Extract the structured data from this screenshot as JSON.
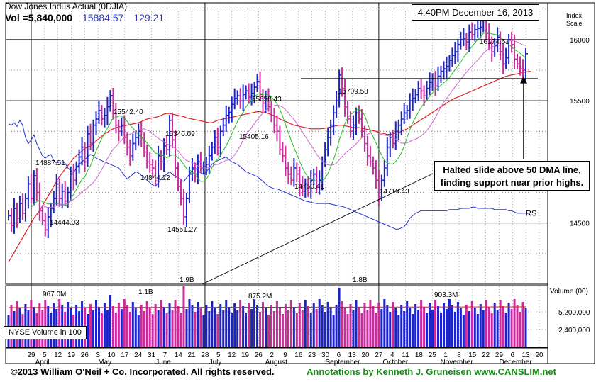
{
  "header": {
    "title": "Dow Jones Indus Actual  (0DJIA)",
    "vol_label": "Vol =5,840,000",
    "last_price": "15884.57",
    "change": "129.21",
    "datetime": "4:40PM December 16, 2013"
  },
  "annotation": {
    "line1": "Halted slide above 50 DMA line,",
    "line2": "finding support near prior highs."
  },
  "footer": {
    "copyright": "©2013 William O'Neil + Co. Incorporated. All rights reserved.",
    "credit": "Annotations by Kenneth J. Gruneisen www.CANSLIM.net"
  },
  "colors": {
    "up_bar": "#1a22c8",
    "down_bar": "#cc2a9c",
    "ma50": "#dd2222",
    "ma10": "#22bb22",
    "ma21": "#cc66cc",
    "rs_line": "#2233cc",
    "annotation_green": "#1a8a1a"
  },
  "chart_data": {
    "type": "line",
    "title": "Dow Jones Indus Actual  (0DJIA)",
    "index_scale_label": "Index Scale",
    "y_ticks": [
      "16000",
      "15500",
      "14500"
    ],
    "ylim": [
      14000,
      16300
    ],
    "price_labels": [
      "14887.51",
      "14444.03",
      "15542.40",
      "15340.09",
      "14844.22",
      "14551.27",
      "15405.16",
      "15658.43",
      "14760.41",
      "15709.58",
      "14719.43",
      "16174.51"
    ],
    "x_ticks": [
      "29",
      "5",
      "12",
      "19",
      "26",
      "3",
      "10",
      "17",
      "24",
      "31",
      "7",
      "14",
      "21",
      "28",
      "5",
      "12",
      "19",
      "26",
      "2",
      "9",
      "16",
      "23",
      "30",
      "6",
      "13",
      "20",
      "27",
      "4",
      "11",
      "18",
      "25",
      "1",
      "8",
      "15",
      "22",
      "29",
      "6",
      "13",
      "20"
    ],
    "months": [
      "April",
      "May",
      "June",
      "July",
      "August",
      "September",
      "October",
      "November",
      "December"
    ],
    "rs_label": "RS",
    "volume": {
      "axis_title": "Volume (00)",
      "ticks": [
        "5,200,000",
        "2,400,000"
      ],
      "labels": [
        "967.0M",
        "1.1B",
        "1.9B",
        "875.2M",
        "1.8B",
        "903.3M"
      ],
      "legend": "NYSE Volume in 100"
    },
    "series": [
      {
        "name": "0DJIA",
        "values": [
          14560,
          14480,
          14620,
          14540,
          14660,
          14580,
          14700,
          14820,
          14700,
          14887,
          14750,
          14600,
          14520,
          14444,
          14550,
          14620,
          14700,
          14820,
          14700,
          14760,
          14680,
          14750,
          14900,
          14850,
          14960,
          15040,
          15120,
          15000,
          15230,
          15150,
          15300,
          15350,
          15420,
          15350,
          15380,
          15450,
          15542,
          15400,
          15300,
          15250,
          15300,
          15200,
          15120,
          15050,
          15150,
          15200,
          15250,
          15200,
          15080,
          15000,
          14980,
          14950,
          14844,
          15050,
          15000,
          15130,
          15100,
          15340,
          15180,
          14950,
          14800,
          14700,
          14551,
          14700,
          14900,
          14950,
          14900,
          15000,
          14950,
          14960,
          14980,
          15050,
          15120,
          15200,
          15120,
          15250,
          15300,
          15380,
          15405,
          15470,
          15520,
          15540,
          15500,
          15550,
          15580,
          15530,
          15560,
          15610,
          15658,
          15550,
          15480,
          15520,
          15450,
          15380,
          15300,
          15250,
          15100,
          15050,
          14950,
          14900,
          14850,
          14950,
          14900,
          14800,
          14760,
          14820,
          14780,
          14850,
          14900,
          14800,
          14850,
          15000,
          15100,
          15200,
          15300,
          15400,
          15500,
          15709,
          15600,
          15450,
          15350,
          15250,
          15300,
          15400,
          15350,
          15250,
          15150,
          15050,
          15000,
          14950,
          14850,
          14719,
          14850,
          14950,
          15120,
          15200,
          15150,
          15250,
          15300,
          15350,
          15400,
          15420,
          15500,
          15520,
          15550,
          15600,
          15580,
          15540,
          15600,
          15650,
          15680,
          15620,
          15700,
          15740,
          15760,
          15780,
          15830,
          15870,
          15900,
          15960,
          16000,
          16010,
          15980,
          16060,
          16040,
          16080,
          16090,
          16100,
          16174,
          16050,
          15980,
          15900,
          15950,
          16020,
          15900,
          15800,
          15850,
          16000,
          15960,
          15840,
          15800,
          15760,
          15750,
          15884
        ]
      },
      {
        "name": "50 DMA",
        "values": [
          14180,
          14220,
          14260,
          14300,
          14340,
          14380,
          14420,
          14460,
          14500,
          14540,
          14570,
          14600,
          14640,
          14680,
          14720,
          14760,
          14800,
          14840,
          14880,
          14910,
          14940,
          14970,
          15000,
          15030,
          15050,
          15070,
          15090,
          15110,
          15120,
          15130,
          15150,
          15170,
          15190,
          15210,
          15230,
          15240,
          15260,
          15270,
          15280,
          15285,
          15290,
          15295,
          15300,
          15305,
          15310,
          15315,
          15320,
          15330,
          15340,
          15350,
          15355,
          15360,
          15365,
          15370,
          15380,
          15390,
          15395,
          15395,
          15390,
          15385,
          15380,
          15375,
          15370,
          15360,
          15355,
          15350,
          15345,
          15340,
          15335,
          15330,
          15325,
          15320,
          15320,
          15330,
          15340,
          15345,
          15350,
          15355,
          15360,
          15365,
          15370,
          15375,
          15380,
          15385,
          15390,
          15395,
          15400,
          15405,
          15410,
          15410,
          15405,
          15400,
          15395,
          15385,
          15375,
          15365,
          15350,
          15340,
          15330,
          15320,
          15310,
          15300,
          15295,
          15290,
          15285,
          15280,
          15275,
          15270,
          15270,
          15270,
          15270,
          15272,
          15275,
          15280,
          15285,
          15290,
          15295,
          15300,
          15300,
          15295,
          15290,
          15285,
          15280,
          15280,
          15280,
          15275,
          15270,
          15265,
          15260,
          15255,
          15250,
          15240,
          15235,
          15230,
          15225,
          15225,
          15230,
          15235,
          15240,
          15250,
          15260,
          15270,
          15285,
          15300,
          15315,
          15330,
          15345,
          15360,
          15375,
          15390,
          15405,
          15420,
          15435,
          15450,
          15465,
          15480,
          15495,
          15510,
          15520,
          15530,
          15540,
          15550,
          15560,
          15570,
          15580,
          15590,
          15600,
          15610,
          15620,
          15630,
          15640,
          15650,
          15660,
          15670,
          15680,
          15690,
          15700,
          15705,
          15710,
          15715,
          15720,
          15725,
          15730,
          15735,
          15738,
          15740
        ]
      },
      {
        "name": "RS",
        "values": [
          15310,
          15300,
          15320,
          15290,
          15340,
          15300,
          15200,
          15150,
          15180,
          15220,
          15150,
          15100,
          15050,
          15030,
          15050,
          15060,
          15010,
          14990,
          15000,
          15000,
          14990,
          14950,
          14930,
          14910,
          14950,
          14980,
          15000,
          15020,
          15040,
          15060,
          15050,
          15030,
          15020,
          15010,
          15000,
          14990,
          14980,
          14970,
          14960,
          14950,
          14920,
          14890,
          14860,
          14880,
          14900,
          14920,
          14910,
          14890,
          14870,
          14850,
          14830,
          14810,
          14800,
          14830,
          14860,
          14880,
          14900,
          14920,
          14900,
          14880,
          14870,
          14850,
          14840,
          14870,
          14900,
          14930,
          14950,
          14930,
          14910,
          14900,
          14920,
          14950,
          14980,
          15000,
          15010,
          15020,
          15030,
          15040,
          15020,
          15000,
          14990,
          14980,
          14960,
          14940,
          14920,
          14910,
          14900,
          14890,
          14880,
          14860,
          14840,
          14820,
          14800,
          14790,
          14780,
          14780,
          14770,
          14760,
          14750,
          14740,
          14730,
          14720,
          14710,
          14700,
          14690,
          14680,
          14675,
          14670,
          14665,
          14660,
          14660,
          14660,
          14660,
          14660,
          14655,
          14650,
          14645,
          14640,
          14635,
          14630,
          14620,
          14610,
          14600,
          14590,
          14580,
          14570,
          14560,
          14550,
          14540,
          14530,
          14520,
          14510,
          14500,
          14490,
          14480,
          14470,
          14460,
          14450,
          14450,
          14460,
          14470,
          14500,
          14540,
          14560,
          14580,
          14590,
          14600,
          14600,
          14600,
          14600,
          14600,
          14600,
          14600,
          14600,
          14600,
          14600,
          14610,
          14610,
          14610,
          14610,
          14620,
          14620,
          14620,
          14620,
          14630,
          14630,
          14620,
          14620,
          14620,
          14620,
          14620,
          14620,
          14610,
          14610,
          14610,
          14610,
          14610,
          14600,
          14600,
          14590,
          14580,
          14580,
          14580,
          14580,
          14580,
          14590
        ]
      }
    ]
  }
}
